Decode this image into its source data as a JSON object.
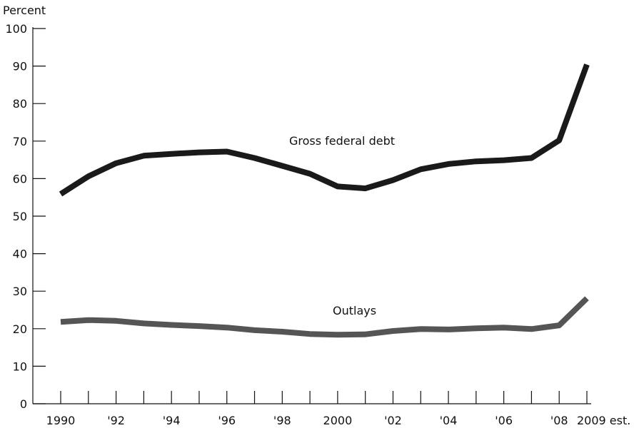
{
  "chart_data": {
    "type": "line",
    "ylabel": "Percent",
    "ylim": [
      0,
      100
    ],
    "yticks": [
      0,
      10,
      20,
      30,
      40,
      50,
      60,
      70,
      80,
      90,
      100
    ],
    "x": [
      1990,
      1991,
      1992,
      1993,
      1994,
      1995,
      1996,
      1997,
      1998,
      1999,
      2000,
      2001,
      2002,
      2003,
      2004,
      2005,
      2006,
      2007,
      2008,
      2009
    ],
    "xtick_labels": [
      {
        "x": 1990,
        "label": "1990"
      },
      {
        "x": 1992,
        "label": "'92"
      },
      {
        "x": 1994,
        "label": "'94"
      },
      {
        "x": 1996,
        "label": "'96"
      },
      {
        "x": 1998,
        "label": "'98"
      },
      {
        "x": 2000,
        "label": "2000"
      },
      {
        "x": 2002,
        "label": "'02"
      },
      {
        "x": 2004,
        "label": "'04"
      },
      {
        "x": 2006,
        "label": "'06"
      },
      {
        "x": 2008,
        "label": "'08"
      },
      {
        "x": 2009,
        "label": "2009 est."
      }
    ],
    "grid": false,
    "series": [
      {
        "name": "Gross federal debt",
        "color": "#1a1a1a",
        "values": [
          55.9,
          60.6,
          64.1,
          66.1,
          66.6,
          67.0,
          67.2,
          65.5,
          63.4,
          61.3,
          57.9,
          57.4,
          59.6,
          62.5,
          63.9,
          64.6,
          64.9,
          65.5,
          70.2,
          90.4
        ]
      },
      {
        "name": "Outlays",
        "color": "#555555",
        "values": [
          21.8,
          22.3,
          22.1,
          21.4,
          21.0,
          20.7,
          20.3,
          19.6,
          19.2,
          18.6,
          18.4,
          18.5,
          19.4,
          19.9,
          19.8,
          20.1,
          20.3,
          19.9,
          20.9,
          28.1
        ]
      }
    ]
  }
}
